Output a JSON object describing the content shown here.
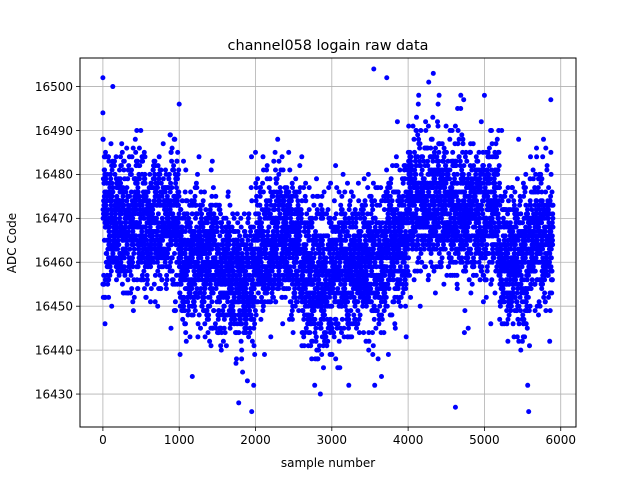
{
  "chart_data": {
    "type": "scatter",
    "title": "channel058 logain raw data",
    "xlabel": "sample number",
    "ylabel": "ADC Code",
    "xlim": [
      -300,
      6200
    ],
    "ylim": [
      16422.5,
      16506.5
    ],
    "x_ticks": [
      0,
      1000,
      2000,
      3000,
      4000,
      5000,
      6000
    ],
    "y_ticks": [
      16430,
      16440,
      16450,
      16460,
      16470,
      16480,
      16490,
      16500
    ],
    "grid": true,
    "marker_color": "#0000ff",
    "n_points": 5900,
    "segments": [
      {
        "x": [
          0,
          400
        ],
        "mean": 16468,
        "sd": 8
      },
      {
        "x": [
          400,
          1000
        ],
        "mean": 16469,
        "sd": 8
      },
      {
        "x": [
          1000,
          1500
        ],
        "mean": 16461,
        "sd": 8
      },
      {
        "x": [
          1500,
          2000
        ],
        "mean": 16456,
        "sd": 8
      },
      {
        "x": [
          2000,
          2600
        ],
        "mean": 16464,
        "sd": 8
      },
      {
        "x": [
          2600,
          3000
        ],
        "mean": 16457,
        "sd": 9
      },
      {
        "x": [
          3000,
          3700
        ],
        "mean": 16460,
        "sd": 8
      },
      {
        "x": [
          3700,
          4000
        ],
        "mean": 16465,
        "sd": 8
      },
      {
        "x": [
          4000,
          4500
        ],
        "mean": 16474,
        "sd": 8
      },
      {
        "x": [
          4500,
          5200
        ],
        "mean": 16471,
        "sd": 8
      },
      {
        "x": [
          5200,
          5600
        ],
        "mean": 16461,
        "sd": 8
      },
      {
        "x": [
          5600,
          5900
        ],
        "mean": 16465,
        "sd": 8
      }
    ],
    "notable_points": [
      {
        "x": 0,
        "y": 16502
      },
      {
        "x": 130,
        "y": 16500
      },
      {
        "x": 3550,
        "y": 16504
      },
      {
        "x": 4330,
        "y": 16503
      },
      {
        "x": 4270,
        "y": 16501
      },
      {
        "x": 3720,
        "y": 16502
      },
      {
        "x": 1950,
        "y": 16426
      },
      {
        "x": 1780,
        "y": 16428
      },
      {
        "x": 2850,
        "y": 16430
      },
      {
        "x": 5580,
        "y": 16426
      },
      {
        "x": 4620,
        "y": 16427
      },
      {
        "x": 0,
        "y": 16494
      },
      {
        "x": 1000,
        "y": 16496
      },
      {
        "x": 5000,
        "y": 16498
      },
      {
        "x": 5870,
        "y": 16497
      }
    ]
  }
}
